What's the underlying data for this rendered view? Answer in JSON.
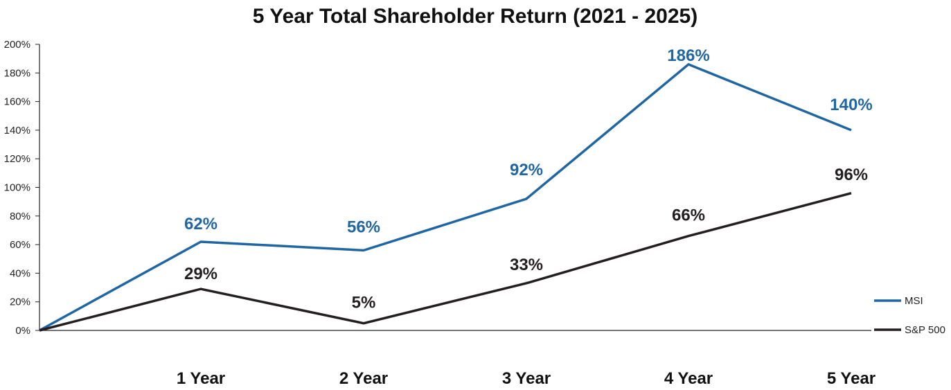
{
  "chart_data": {
    "type": "line",
    "title": "5 Year Total Shareholder Return (2021 - 2025)",
    "xlabel": "",
    "ylabel": "",
    "categories": [
      "",
      "1 Year",
      "2 Year",
      "3 Year",
      "4 Year",
      "5 Year"
    ],
    "ylim": [
      0,
      200
    ],
    "yticks": [
      0,
      20,
      40,
      60,
      80,
      100,
      120,
      140,
      160,
      180,
      200
    ],
    "ytick_labels": [
      "0%",
      "20%",
      "40%",
      "60%",
      "80%",
      "100%",
      "120%",
      "140%",
      "160%",
      "180%",
      "200%"
    ],
    "grid": false,
    "legend_position": "right",
    "series": [
      {
        "name": "MSI",
        "color": "#1f66a3",
        "values": [
          0,
          62,
          56,
          92,
          186,
          140
        ],
        "labels": [
          "",
          "62%",
          "56%",
          "92%",
          "186%",
          "140%"
        ]
      },
      {
        "name": "S&P 500",
        "color": "#231f20",
        "values": [
          0,
          29,
          5,
          33,
          66,
          96
        ],
        "labels": [
          "",
          "29%",
          "5%",
          "33%",
          "66%",
          "96%"
        ]
      }
    ]
  }
}
